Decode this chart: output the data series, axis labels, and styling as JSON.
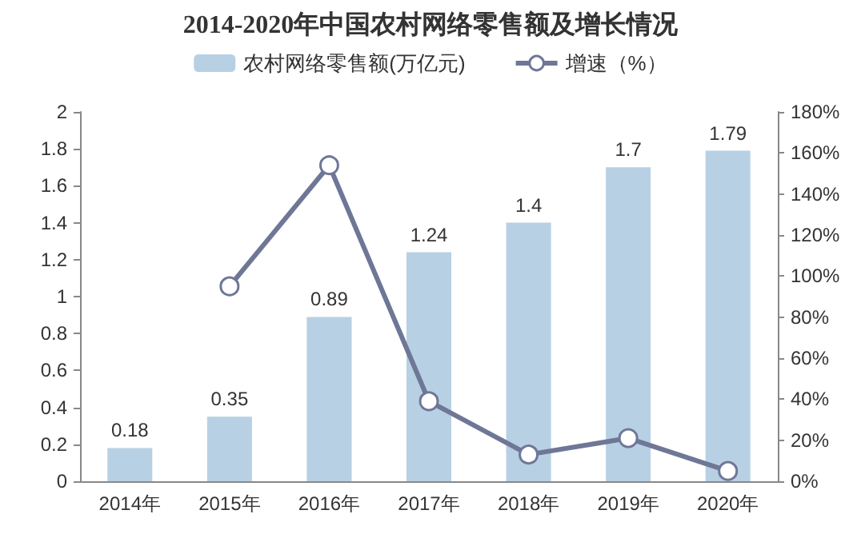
{
  "chart_data": {
    "type": "bar",
    "title": "2014-2020年中国农村网络零售额及增长情况",
    "categories": [
      "2014年",
      "2015年",
      "2016年",
      "2017年",
      "2018年",
      "2019年",
      "2020年"
    ],
    "series": [
      {
        "name": "农村网络零售额(万亿元)",
        "color": "#b7d0e4",
        "values": [
          0.18,
          0.35,
          0.89,
          1.24,
          1.4,
          1.7,
          1.79
        ],
        "data_labels": true
      },
      {
        "name": "增速（%）",
        "type": "line",
        "axis": "y2",
        "color": "#6f7797",
        "marker": "circle",
        "values": [
          null,
          95,
          154,
          39,
          13,
          21,
          5
        ]
      }
    ],
    "ylim": [
      0,
      2
    ],
    "yticks": [
      0,
      0.2,
      0.4,
      0.6,
      0.8,
      1,
      1.2,
      1.4,
      1.6,
      1.8,
      2
    ],
    "y2lim": [
      0,
      180
    ],
    "y2ticks": [
      {
        "value": 0,
        "label": "0%"
      },
      {
        "value": 20,
        "label": "20%"
      },
      {
        "value": 40,
        "label": "40%"
      },
      {
        "value": 60,
        "label": "60%"
      },
      {
        "value": 80,
        "label": "80%"
      },
      {
        "value": 100,
        "label": "100%"
      },
      {
        "value": 120,
        "label": "120%"
      },
      {
        "value": 140,
        "label": "140%"
      },
      {
        "value": 160,
        "label": "160%"
      },
      {
        "value": 180,
        "label": "180%"
      }
    ],
    "legend": "top",
    "grid": false
  }
}
